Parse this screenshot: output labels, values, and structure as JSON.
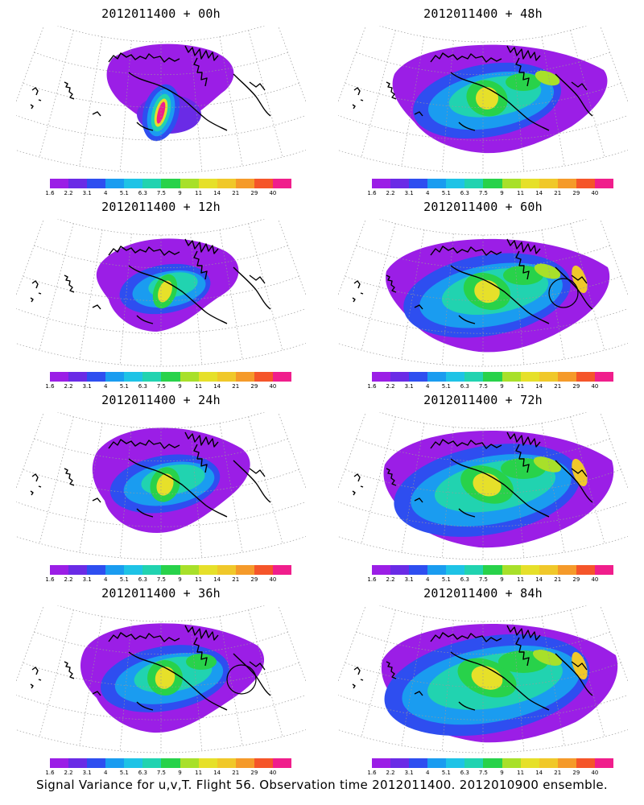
{
  "caption": "Signal Variance for u,v,T. Flight 56. Observation time 2012011400. 2012010900 ensemble.",
  "colorbar": {
    "labels": [
      "1.6",
      "2.2",
      "3.1",
      "4",
      "5.1",
      "6.3",
      "7.5",
      "9",
      "11",
      "14",
      "21",
      "29",
      "40"
    ],
    "colors": [
      "#9b1ee6",
      "#6a2be6",
      "#2e4ef0",
      "#1a9cf0",
      "#1ec3e6",
      "#21d3b0",
      "#28d24a",
      "#a8e02a",
      "#e6e02a",
      "#f0c82a",
      "#f59a2a",
      "#f5552a",
      "#f01e8c"
    ]
  },
  "panels": [
    {
      "title": "2012011400 + 00h",
      "stage": 0
    },
    {
      "title": "2012011400 + 48h",
      "stage": 4
    },
    {
      "title": "2012011400 + 12h",
      "stage": 1
    },
    {
      "title": "2012011400 + 60h",
      "stage": 5
    },
    {
      "title": "2012011400 + 24h",
      "stage": 2
    },
    {
      "title": "2012011400 + 72h",
      "stage": 6
    },
    {
      "title": "2012011400 + 36h",
      "stage": 3
    },
    {
      "title": "2012011400 + 84h",
      "stage": 7
    }
  ]
}
